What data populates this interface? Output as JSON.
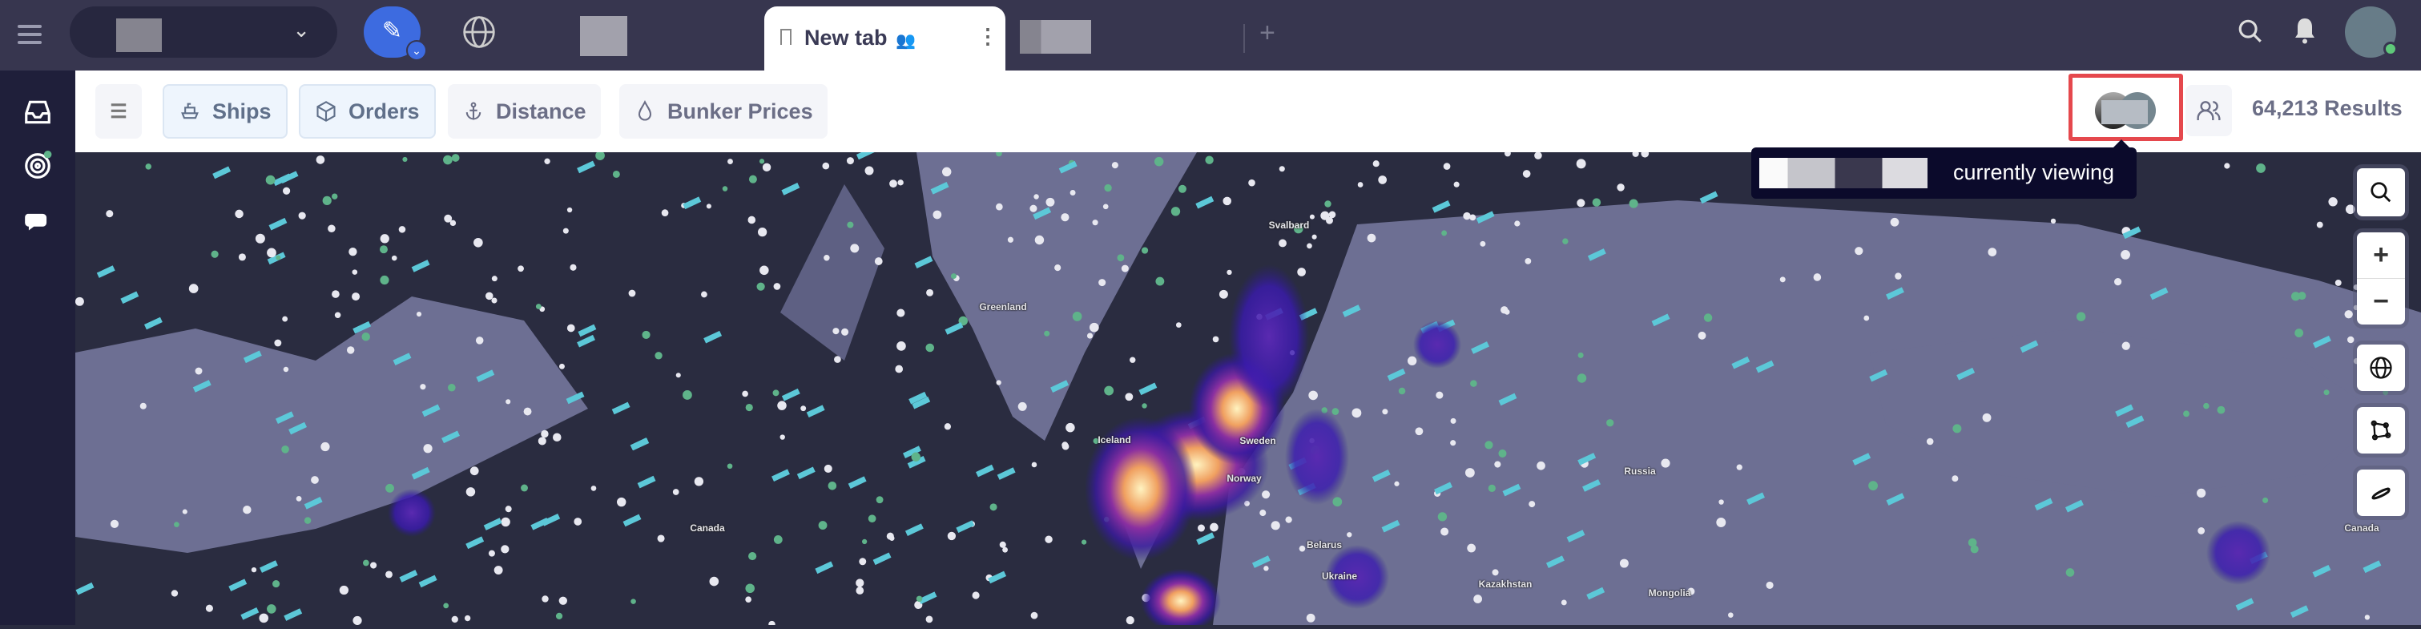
{
  "topbar": {
    "tab": {
      "label": "New tab",
      "icon": "bookmark-icon"
    },
    "icons": [
      "menu-icon",
      "pen-icon",
      "globe-icon",
      "plus-icon",
      "search-icon",
      "bell-icon"
    ],
    "colors": {
      "bar": "#37364f",
      "accent": "#3d6be0",
      "online": "#5fc97a"
    }
  },
  "sidebar": {
    "items": [
      "inbox-icon",
      "radar-icon",
      "chat-icon"
    ]
  },
  "toolbar": {
    "buttons": [
      {
        "label": "Ships",
        "icon": "ship-icon",
        "selected": true
      },
      {
        "label": "Orders",
        "icon": "box-icon",
        "selected": true
      },
      {
        "label": "Distance",
        "icon": "anchor-icon",
        "selected": false
      },
      {
        "label": "Bunker Prices",
        "icon": "drop-icon",
        "selected": false
      }
    ],
    "results": "64,213 Results"
  },
  "tooltip": {
    "text": "currently viewing"
  },
  "map": {
    "labels": {
      "svalbard": "Svalbard",
      "greenland": "Greenland",
      "iceland": "Iceland",
      "sweden": "Sweden",
      "norway": "Norway",
      "canada": "Canada",
      "canada2": "Canada",
      "russia": "Russia",
      "belarus": "Belarus",
      "ukraine": "Ukraine",
      "kazakhstan": "Kazakhstan",
      "mongolia": "Mongolia"
    },
    "controls": [
      "search-icon",
      "zoom-in-icon",
      "zoom-out-icon",
      "globe-icon",
      "polygon-icon",
      "ship-icon"
    ]
  }
}
